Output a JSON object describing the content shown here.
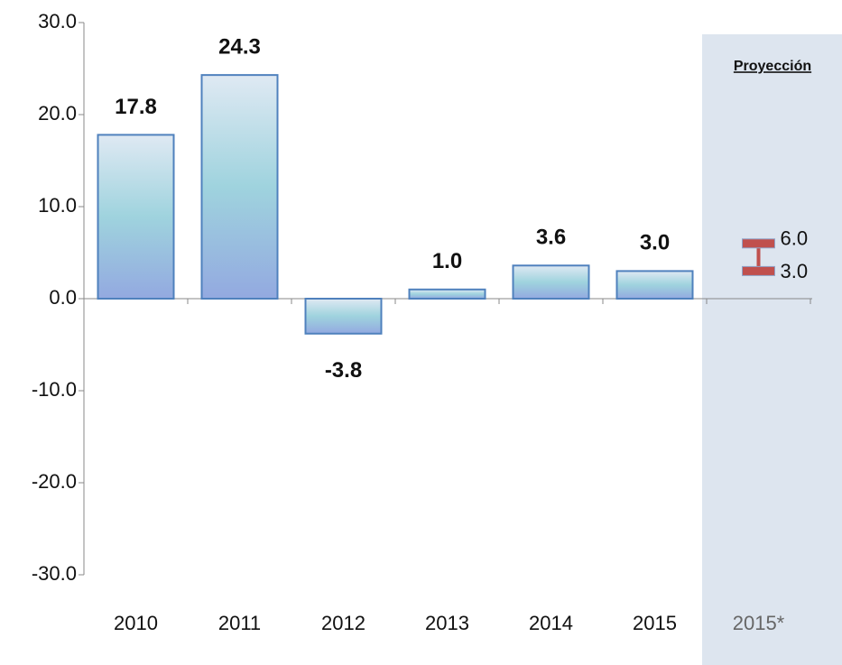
{
  "chart_data": {
    "type": "bar",
    "categories": [
      "2010",
      "2011",
      "2012",
      "2013",
      "2014",
      "2015",
      "2015*"
    ],
    "values": [
      17.8,
      24.3,
      -3.8,
      1.0,
      3.6,
      3.0,
      null
    ],
    "value_labels": [
      "17.8",
      "24.3",
      "-3.8",
      "1.0",
      "3.6",
      "3.0",
      null
    ],
    "color": "#4f81bd",
    "ylim": [
      -30,
      30
    ],
    "yticks": [
      {
        "value": -30,
        "label": "-30.0"
      },
      {
        "value": -20,
        "label": "-20.0"
      },
      {
        "value": -10,
        "label": "-10.0"
      },
      {
        "value": 0,
        "label": "0.0"
      },
      {
        "value": 10,
        "label": "10.0"
      },
      {
        "value": 20,
        "label": "20.0"
      },
      {
        "value": 30,
        "label": "30.0"
      }
    ],
    "projection": {
      "label": "Proyección",
      "low": 3,
      "high": 6,
      "low_label": "3.0",
      "high_label": "6.0",
      "color": "#c0504d"
    }
  }
}
